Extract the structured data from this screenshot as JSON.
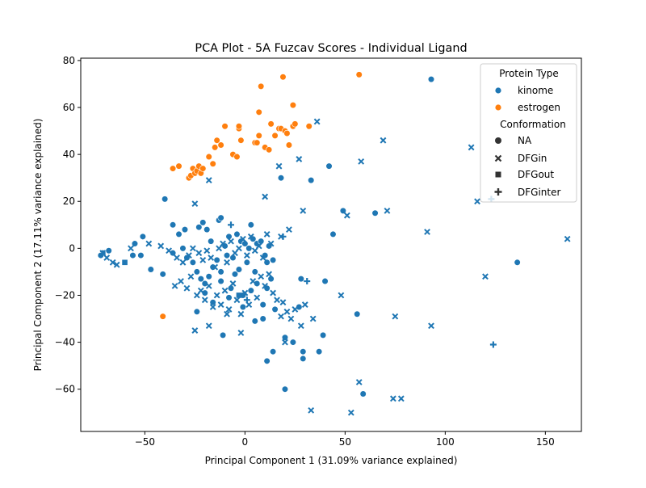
{
  "chart_data": {
    "type": "scatter",
    "title": "PCA Plot - 5A Fuzcav Scores - Individual Ligand",
    "xlabel": "Principal Component 1 (31.09% variance explained)",
    "ylabel": "Principal Component 2 (17.11% variance explained)",
    "xlim": [
      -82,
      168
    ],
    "ylim": [
      -78,
      81
    ],
    "xticks": [
      -50,
      0,
      50,
      100,
      150
    ],
    "yticks": [
      -60,
      -40,
      -20,
      0,
      20,
      40,
      60,
      80
    ],
    "grid": false,
    "legend_placement": "top-right",
    "legend": {
      "hue_title": "Protein Type",
      "hue_entries": [
        {
          "label": "kinome",
          "color": "#1f77b4"
        },
        {
          "label": "estrogen",
          "color": "#ff7f0e"
        }
      ],
      "style_title": "Conformation",
      "style_entries": [
        {
          "label": "NA",
          "marker": "circle"
        },
        {
          "label": "DFGin",
          "marker": "x"
        },
        {
          "label": "DFGout",
          "marker": "square"
        },
        {
          "label": "DFGinter",
          "marker": "plus"
        }
      ]
    },
    "series": [
      {
        "protein_type": "estrogen",
        "conformation": "NA",
        "color": "#ff7f0e",
        "marker": "circle",
        "points": [
          [
            -36,
            34
          ],
          [
            -33,
            35
          ],
          [
            -28,
            30
          ],
          [
            -27,
            31
          ],
          [
            -26,
            34
          ],
          [
            -25,
            32
          ],
          [
            -24,
            33
          ],
          [
            -23,
            35
          ],
          [
            -22,
            32
          ],
          [
            -21,
            34
          ],
          [
            -18,
            39
          ],
          [
            -16,
            36
          ],
          [
            -15,
            43
          ],
          [
            -14,
            46
          ],
          [
            -12,
            44
          ],
          [
            -10,
            52
          ],
          [
            -6,
            40
          ],
          [
            -4,
            39
          ],
          [
            -3,
            51
          ],
          [
            -3,
            52
          ],
          [
            -2,
            46
          ],
          [
            5,
            45
          ],
          [
            6,
            45
          ],
          [
            7,
            48
          ],
          [
            7,
            58
          ],
          [
            8,
            69
          ],
          [
            10,
            43
          ],
          [
            12,
            42
          ],
          [
            13,
            53
          ],
          [
            15,
            48
          ],
          [
            17,
            51
          ],
          [
            18,
            51
          ],
          [
            19,
            73
          ],
          [
            20,
            50
          ],
          [
            21,
            49
          ],
          [
            22,
            44
          ],
          [
            24,
            52
          ],
          [
            24,
            61
          ],
          [
            25,
            53
          ],
          [
            32,
            52
          ],
          [
            57,
            74
          ],
          [
            -41,
            -29
          ]
        ]
      },
      {
        "protein_type": "kinome",
        "conformation": "NA",
        "color": "#1f77b4",
        "marker": "circle",
        "points": [
          [
            93,
            72
          ],
          [
            42,
            35
          ],
          [
            33,
            29
          ],
          [
            18,
            30
          ],
          [
            -40,
            21
          ],
          [
            49,
            16
          ],
          [
            65,
            15
          ],
          [
            136,
            -6
          ],
          [
            -36,
            10
          ],
          [
            -30,
            8
          ],
          [
            -23,
            9
          ],
          [
            -21,
            11
          ],
          [
            -19,
            8
          ],
          [
            -13,
            12
          ],
          [
            -12,
            13
          ],
          [
            3,
            10
          ],
          [
            -51,
            5
          ],
          [
            -55,
            2
          ],
          [
            -68,
            -1
          ],
          [
            -71,
            -2
          ],
          [
            -72,
            -3
          ],
          [
            -56,
            -3
          ],
          [
            -52,
            -3
          ],
          [
            -47,
            -9
          ],
          [
            -41,
            -11
          ],
          [
            -36,
            -2
          ],
          [
            -33,
            6
          ],
          [
            -31,
            0
          ],
          [
            -29,
            -4
          ],
          [
            -26,
            -6
          ],
          [
            -24,
            -10
          ],
          [
            -22,
            -13
          ],
          [
            -20,
            -15
          ],
          [
            -18,
            -12
          ],
          [
            -16,
            -8
          ],
          [
            -14,
            -5
          ],
          [
            -12,
            -10
          ],
          [
            -10,
            1
          ],
          [
            -8,
            5
          ],
          [
            -6,
            -4
          ],
          [
            -4,
            6
          ],
          [
            -2,
            3
          ],
          [
            0,
            2
          ],
          [
            2,
            0
          ],
          [
            4,
            4
          ],
          [
            6,
            2
          ],
          [
            8,
            3
          ],
          [
            10,
            -3
          ],
          [
            12,
            1
          ],
          [
            14,
            -5
          ],
          [
            -24,
            -27
          ],
          [
            -20,
            -19
          ],
          [
            -16,
            -23
          ],
          [
            -12,
            -14
          ],
          [
            -8,
            -21
          ],
          [
            -5,
            -11
          ],
          [
            -1,
            -25
          ],
          [
            3,
            -18
          ],
          [
            6,
            -15
          ],
          [
            9,
            -24
          ],
          [
            11,
            -17
          ],
          [
            13,
            -13
          ],
          [
            15,
            -26
          ],
          [
            -11,
            -37
          ],
          [
            5,
            -31
          ],
          [
            9,
            -30
          ],
          [
            14,
            -44
          ],
          [
            20,
            -38
          ],
          [
            24,
            -40
          ],
          [
            27,
            -25
          ],
          [
            28,
            -13
          ],
          [
            29,
            -44
          ],
          [
            29,
            -47
          ],
          [
            37,
            -44
          ],
          [
            39,
            -37
          ],
          [
            40,
            -14
          ],
          [
            44,
            6
          ],
          [
            56,
            -28
          ],
          [
            59,
            -62
          ],
          [
            11,
            -48
          ],
          [
            20,
            -60
          ],
          [
            -17,
            3
          ],
          [
            -9,
            -3
          ],
          [
            -3,
            -9
          ],
          [
            1,
            -6
          ],
          [
            5,
            -10
          ],
          [
            -7,
            -17
          ],
          [
            -1,
            -20
          ],
          [
            11,
            -6
          ]
        ]
      },
      {
        "protein_type": "kinome",
        "conformation": "DFGin",
        "color": "#1f77b4",
        "marker": "x",
        "points": [
          [
            36,
            54
          ],
          [
            69,
            46
          ],
          [
            113,
            43
          ],
          [
            58,
            37
          ],
          [
            27,
            38
          ],
          [
            17,
            35
          ],
          [
            -18,
            29
          ],
          [
            10,
            22
          ],
          [
            -25,
            19
          ],
          [
            116,
            20
          ],
          [
            71,
            16
          ],
          [
            29,
            16
          ],
          [
            51,
            14
          ],
          [
            22,
            8
          ],
          [
            91,
            7
          ],
          [
            18,
            5
          ],
          [
            161,
            4
          ],
          [
            -71,
            -2
          ],
          [
            -69,
            -4
          ],
          [
            -66,
            -6
          ],
          [
            -64,
            -7
          ],
          [
            -57,
            0
          ],
          [
            -48,
            2
          ],
          [
            -42,
            1
          ],
          [
            -38,
            -1
          ],
          [
            -34,
            -4
          ],
          [
            -31,
            -6
          ],
          [
            -28,
            -3
          ],
          [
            -26,
            0
          ],
          [
            -23,
            -2
          ],
          [
            -21,
            -5
          ],
          [
            -19,
            -1
          ],
          [
            -17,
            -4
          ],
          [
            -15,
            -8
          ],
          [
            -13,
            0
          ],
          [
            -11,
            2
          ],
          [
            -9,
            -6
          ],
          [
            -7,
            3
          ],
          [
            -5,
            -2
          ],
          [
            -3,
            0
          ],
          [
            -1,
            4
          ],
          [
            1,
            -3
          ],
          [
            3,
            5
          ],
          [
            5,
            -1
          ],
          [
            7,
            1
          ],
          [
            9,
            -4
          ],
          [
            11,
            6
          ],
          [
            13,
            2
          ],
          [
            -35,
            -16
          ],
          [
            -32,
            -14
          ],
          [
            -29,
            -17
          ],
          [
            -27,
            -12
          ],
          [
            -24,
            -20
          ],
          [
            -22,
            -18
          ],
          [
            -20,
            -22
          ],
          [
            -18,
            -16
          ],
          [
            -16,
            -25
          ],
          [
            -14,
            -20
          ],
          [
            -12,
            -24
          ],
          [
            -10,
            -18
          ],
          [
            -8,
            -26
          ],
          [
            -6,
            -15
          ],
          [
            -4,
            -22
          ],
          [
            -2,
            -28
          ],
          [
            0,
            -19
          ],
          [
            2,
            -24
          ],
          [
            4,
            -14
          ],
          [
            6,
            -21
          ],
          [
            8,
            -12
          ],
          [
            10,
            -16
          ],
          [
            12,
            -11
          ],
          [
            14,
            -19
          ],
          [
            16,
            -22
          ],
          [
            18,
            -29
          ],
          [
            19,
            -23
          ],
          [
            21,
            -27
          ],
          [
            23,
            -30
          ],
          [
            25,
            -26
          ],
          [
            28,
            -33
          ],
          [
            30,
            -24
          ],
          [
            34,
            -30
          ],
          [
            48,
            -20
          ],
          [
            -25,
            -35
          ],
          [
            -18,
            -33
          ],
          [
            -2,
            -36
          ],
          [
            -9,
            -28
          ],
          [
            20,
            -40
          ],
          [
            120,
            -12
          ],
          [
            93,
            -33
          ],
          [
            75,
            -29
          ],
          [
            57,
            -57
          ],
          [
            74,
            -64
          ],
          [
            78,
            -64
          ],
          [
            33,
            -69
          ],
          [
            53,
            -70
          ]
        ]
      },
      {
        "protein_type": "kinome",
        "conformation": "DFGout",
        "color": "#1f77b4",
        "marker": "square",
        "points": [
          [
            -60,
            -6
          ],
          [
            -3,
            -20
          ]
        ]
      },
      {
        "protein_type": "kinome",
        "conformation": "DFGinter",
        "color": "#1f77b4",
        "marker": "plus",
        "points": [
          [
            123,
            21
          ],
          [
            124,
            -41
          ],
          [
            31,
            -14
          ],
          [
            1,
            -22
          ],
          [
            -7,
            10
          ],
          [
            19,
            5
          ]
        ]
      }
    ]
  }
}
